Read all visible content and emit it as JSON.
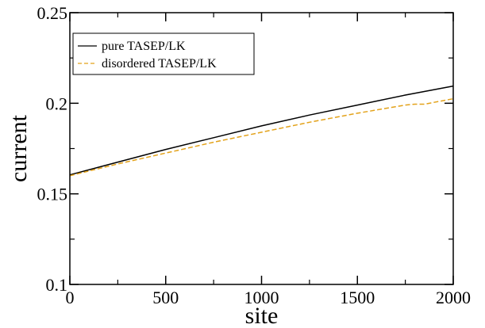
{
  "chart_data": {
    "type": "line",
    "xlabel": "site",
    "ylabel": "current",
    "xlim": [
      0,
      2000
    ],
    "ylim": [
      0.1,
      0.25
    ],
    "xticks": [
      0,
      500,
      1000,
      1500,
      2000
    ],
    "xtick_labels": [
      "0",
      "500",
      "1000",
      "1500",
      "2000"
    ],
    "yticks": [
      0.1,
      0.15,
      0.2,
      0.25
    ],
    "ytick_labels": [
      "0.1",
      "0.15",
      "0.2",
      "0.25"
    ],
    "grid": false,
    "legend_position": "top-left",
    "series": [
      {
        "name": "pure TASEP/LK",
        "color": "#000000",
        "dash": "solid",
        "x": [
          0,
          250,
          500,
          750,
          1000,
          1250,
          1500,
          1750,
          2000
        ],
        "y": [
          0.1605,
          0.1675,
          0.1745,
          0.181,
          0.1875,
          0.1935,
          0.199,
          0.2045,
          0.2095
        ]
      },
      {
        "name": "disordered TASEP/LK",
        "color": "#e3a21a",
        "dash": "dashed",
        "x": [
          0,
          250,
          500,
          750,
          1000,
          1250,
          1500,
          1750,
          1800,
          1850,
          1900,
          2000
        ],
        "y": [
          0.16,
          0.1665,
          0.1725,
          0.1785,
          0.184,
          0.1895,
          0.1945,
          0.199,
          0.1995,
          0.1995,
          0.2005,
          0.2025
        ]
      }
    ]
  }
}
